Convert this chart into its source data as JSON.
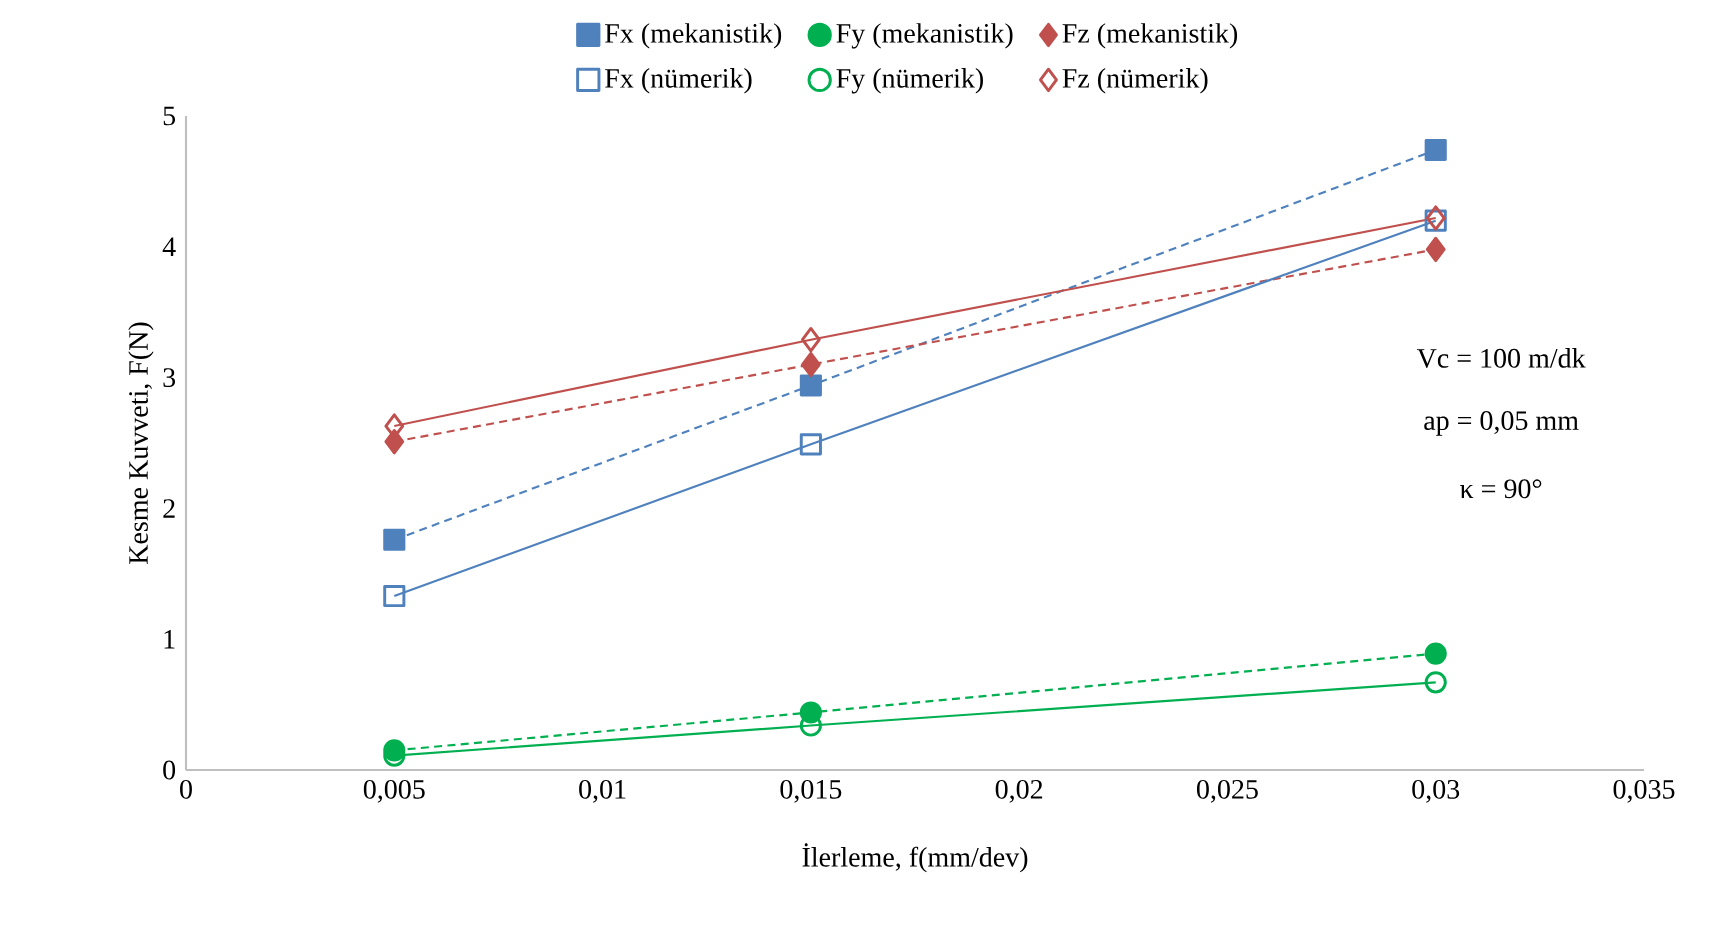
{
  "chart_data": {
    "type": "line",
    "xlabel": "İlerleme, f(mm/dev)",
    "ylabel": "Kesme Kuvveti, F(N)",
    "xlim": [
      0,
      0.035
    ],
    "ylim": [
      0,
      5
    ],
    "xticks": [
      0,
      {
        "value": 0.005,
        "label": "0,005"
      },
      {
        "value": 0.01,
        "label": "0,01"
      },
      {
        "value": 0.015,
        "label": "0,015"
      },
      {
        "value": 0.02,
        "label": "0,02"
      },
      {
        "value": 0.025,
        "label": "0,025"
      },
      {
        "value": 0.03,
        "label": "0,03"
      },
      {
        "value": 0.035,
        "label": "0,035"
      }
    ],
    "yticks": [
      0,
      1,
      2,
      3,
      4,
      5
    ],
    "x": [
      0.005,
      0.015,
      0.03
    ],
    "legend": "top",
    "grid": false,
    "series": [
      {
        "name": "Fx (mekanistik)",
        "color": "#4f81bd",
        "marker": "square",
        "line_style": "dashed",
        "values": [
          1.76,
          2.94,
          4.74
        ]
      },
      {
        "name": "Fy (mekanistik)",
        "color": "#00b050",
        "marker": "circle",
        "line_style": "dashed",
        "values": [
          0.15,
          0.44,
          0.89
        ]
      },
      {
        "name": "Fz (mekanistik)",
        "color": "#c0504d",
        "marker": "diamond",
        "line_style": "dashed",
        "values": [
          2.51,
          3.1,
          3.98
        ]
      },
      {
        "name": "Fx (nümerik)",
        "color": "#4f81bd",
        "marker": "square",
        "line_style": "solid",
        "values": [
          1.33,
          2.49,
          4.2
        ]
      },
      {
        "name": "Fy (nümerik)",
        "color": "#00b050",
        "marker": "circle",
        "line_style": "solid",
        "values": [
          0.11,
          0.34,
          0.67
        ]
      },
      {
        "name": "Fz (nümerik)",
        "color": "#c0504d",
        "marker": "diamond",
        "line_style": "solid",
        "values": [
          2.63,
          3.29,
          4.22
        ]
      }
    ],
    "annotations": [
      "Vc = 100 m/dk",
      "ap = 0,05 mm",
      "κ = 90°"
    ]
  }
}
